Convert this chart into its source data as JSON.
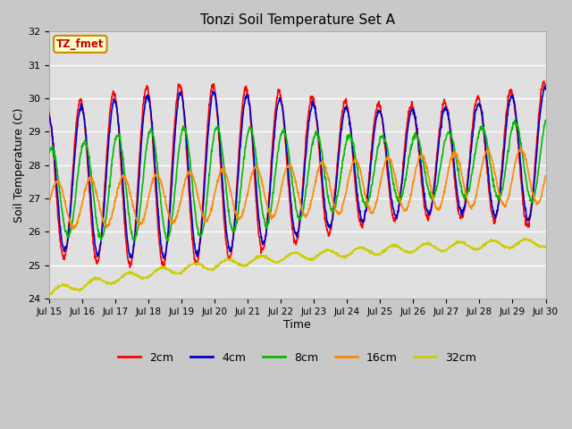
{
  "title": "Tonzi Soil Temperature Set A",
  "xlabel": "Time",
  "ylabel": "Soil Temperature (C)",
  "ylim": [
    24.0,
    32.0
  ],
  "yticks": [
    24.0,
    25.0,
    26.0,
    27.0,
    28.0,
    29.0,
    30.0,
    31.0,
    32.0
  ],
  "xtick_labels": [
    "Jul 15",
    "Jul 16",
    "Jul 17",
    "Jul 18",
    "Jul 19",
    "Jul 20",
    "Jul 21",
    "Jul 22",
    "Jul 23",
    "Jul 24",
    "Jul 25",
    "Jul 26",
    "Jul 27",
    "Jul 28",
    "Jul 29",
    "Jul 30"
  ],
  "annotation_text": "TZ_fmet",
  "annotation_color": "#cc0000",
  "annotation_bg": "#ffffcc",
  "annotation_border": "#cc8800",
  "colors": {
    "2cm": "#ff0000",
    "4cm": "#0000cc",
    "8cm": "#00bb00",
    "16cm": "#ff8800",
    "32cm": "#cccc00"
  },
  "fig_bg": "#c8c8c8",
  "plot_bg": "#e0e0e0",
  "grid_color": "#ffffff"
}
